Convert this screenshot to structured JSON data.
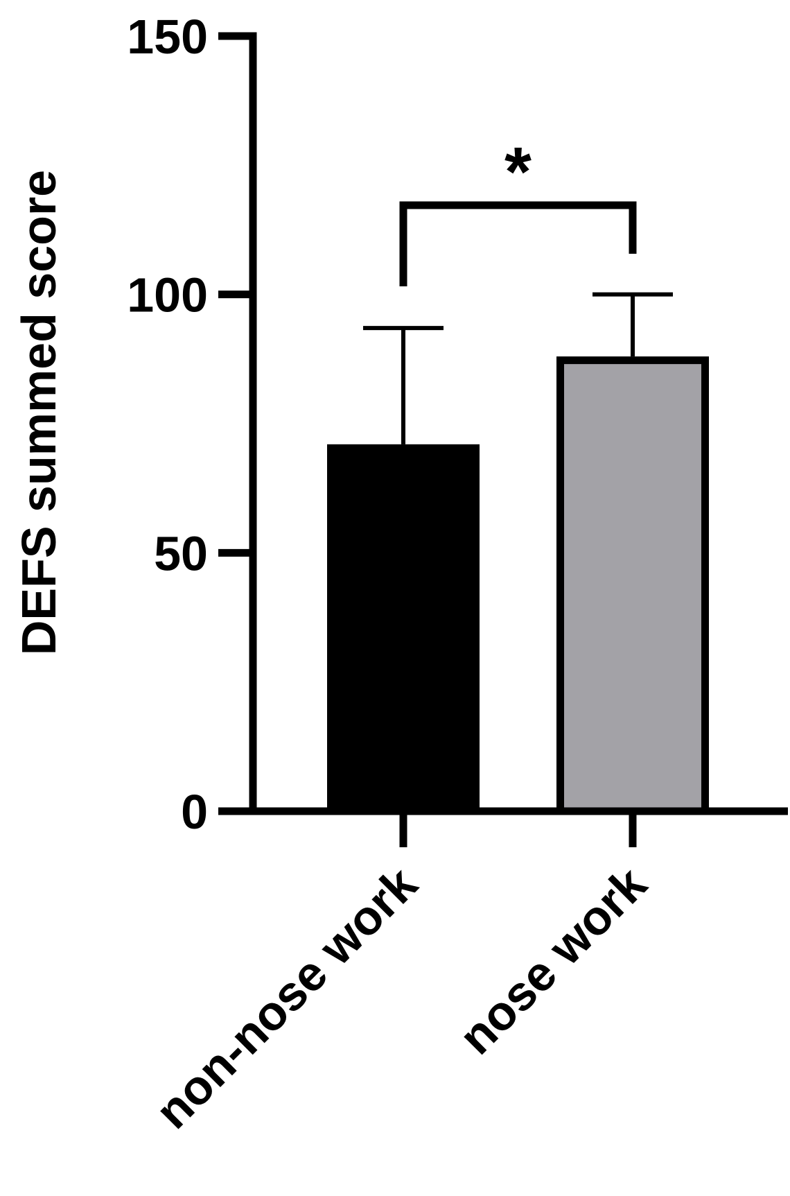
{
  "chart_data": {
    "type": "bar",
    "title": "",
    "xlabel": "",
    "ylabel": "DEFS summed score",
    "categories": [
      "non-nose work",
      "nose work"
    ],
    "values": [
      71,
      88
    ],
    "error_upper": [
      93.5,
      100
    ],
    "bar_colors": [
      "#000000",
      "#a3a2a7"
    ],
    "ylim": [
      0,
      150
    ],
    "yticks": [
      {
        "value": 0,
        "label": "0"
      },
      {
        "value": 50,
        "label": "50"
      },
      {
        "value": 100,
        "label": "100"
      },
      {
        "value": 150,
        "label": "150"
      }
    ],
    "grid": false,
    "legend": "none",
    "significance": {
      "label": "*",
      "between": [
        0,
        1
      ]
    }
  }
}
